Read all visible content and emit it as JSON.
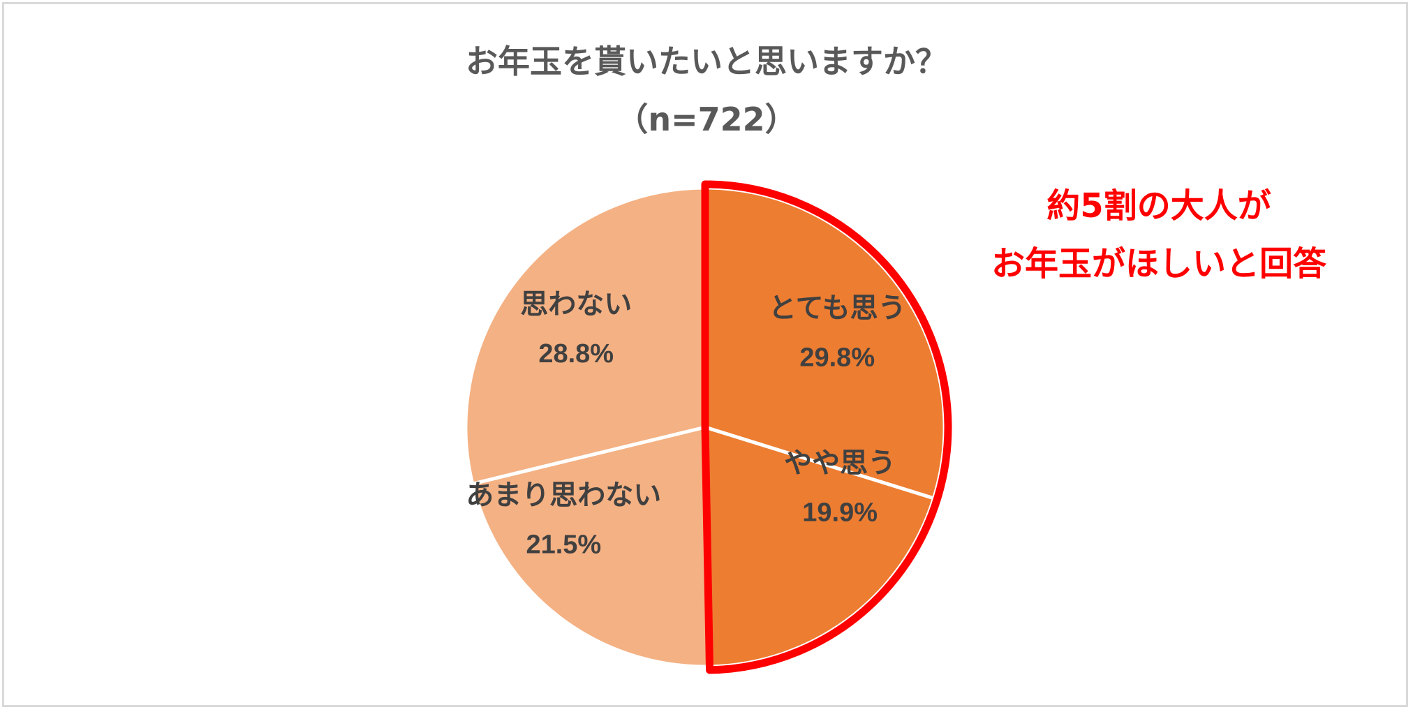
{
  "chart_data": {
    "type": "pie",
    "title": "お年玉を貰いたいと思いますか？",
    "subtitle": "（n=722）",
    "slices": [
      {
        "label": "とても思う",
        "value": 29.8,
        "value_label": "29.8%",
        "color": "#ed7d31"
      },
      {
        "label": "やや思う",
        "value": 19.9,
        "value_label": "19.9%",
        "color": "#ed7d31"
      },
      {
        "label": "あまり思わない",
        "value": 21.5,
        "value_label": "21.5%",
        "color": "#f4b183"
      },
      {
        "label": "思わない",
        "value": 28.8,
        "value_label": "28.8%",
        "color": "#f4b183"
      }
    ],
    "highlight": {
      "slices": [
        "とても思う",
        "やや思う"
      ],
      "outline_color": "#ff0000"
    },
    "annotation": [
      "約5割の大人が",
      "お年玉がほしいと回答"
    ],
    "label_color": "#404040"
  }
}
